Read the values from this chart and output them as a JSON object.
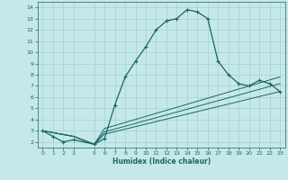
{
  "background_color": "#c5e8e8",
  "grid_color": "#a8d0d0",
  "line_color": "#1a6666",
  "xlabel": "Humidex (Indice chaleur)",
  "xlim": [
    -0.5,
    23.5
  ],
  "ylim": [
    1.5,
    14.5
  ],
  "xticks": [
    0,
    1,
    2,
    3,
    5,
    6,
    7,
    8,
    9,
    10,
    11,
    12,
    13,
    14,
    15,
    16,
    17,
    18,
    19,
    20,
    21,
    22,
    23
  ],
  "yticks": [
    2,
    3,
    4,
    5,
    6,
    7,
    8,
    9,
    10,
    11,
    12,
    13,
    14
  ],
  "curve1_x": [
    0,
    1,
    2,
    3,
    5,
    6,
    7,
    8,
    9,
    10,
    11,
    12,
    13,
    14,
    15,
    16,
    17,
    18,
    19,
    20,
    21,
    22,
    23
  ],
  "curve1_y": [
    3.0,
    2.5,
    2.0,
    2.2,
    1.8,
    2.3,
    5.3,
    7.8,
    9.2,
    10.5,
    12.0,
    12.8,
    13.0,
    13.8,
    13.6,
    13.0,
    9.2,
    8.0,
    7.2,
    7.0,
    7.5,
    7.2,
    6.5
  ],
  "curve2_x": [
    0,
    3,
    5,
    6,
    23
  ],
  "curve2_y": [
    3.0,
    2.5,
    1.8,
    2.7,
    6.5
  ],
  "curve3_x": [
    0,
    3,
    5,
    6,
    23
  ],
  "curve3_y": [
    3.0,
    2.5,
    1.8,
    2.9,
    7.2
  ],
  "curve4_x": [
    0,
    3,
    5,
    6,
    23
  ],
  "curve4_y": [
    3.0,
    2.5,
    1.8,
    3.2,
    7.8
  ]
}
